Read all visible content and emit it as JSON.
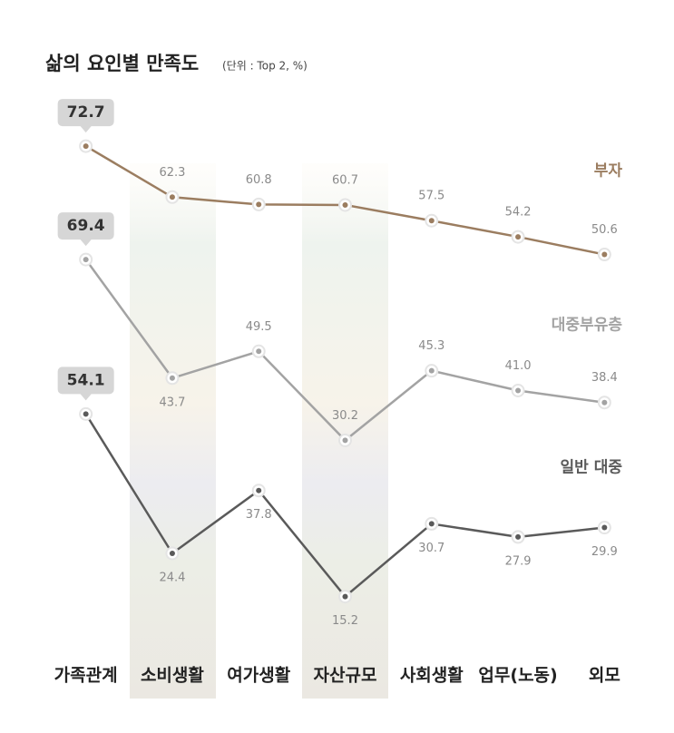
{
  "chart_data": {
    "type": "line",
    "title": "삶의 요인별 만족도",
    "subtitle": "(단위 : Top 2, %)",
    "categories": [
      "가족관계",
      "소비생활",
      "여가생활",
      "자산규모",
      "사회생활",
      "업무(노동)",
      "외모"
    ],
    "series": [
      {
        "name": "부자",
        "color": "#9b7d60",
        "ylim": [
          -27,
          84
        ],
        "values": [
          72.7,
          62.3,
          60.8,
          60.7,
          57.5,
          54.2,
          50.6
        ]
      },
      {
        "name": "대중부유층",
        "color": "#a3a3a3",
        "ylim": [
          -12,
          106
        ],
        "values": [
          69.4,
          43.7,
          49.5,
          30.2,
          45.3,
          41.0,
          38.4
        ],
        "value_labels": [
          "69.4",
          "43.7",
          "49.5",
          "30.2",
          "45.3",
          "41.0",
          "38.4"
        ]
      },
      {
        "name": "일반 대중",
        "color": "#5a5a5a",
        "ylim": [
          7,
          123
        ],
        "values": [
          54.1,
          24.4,
          37.8,
          15.2,
          30.7,
          27.9,
          29.9
        ]
      }
    ]
  }
}
